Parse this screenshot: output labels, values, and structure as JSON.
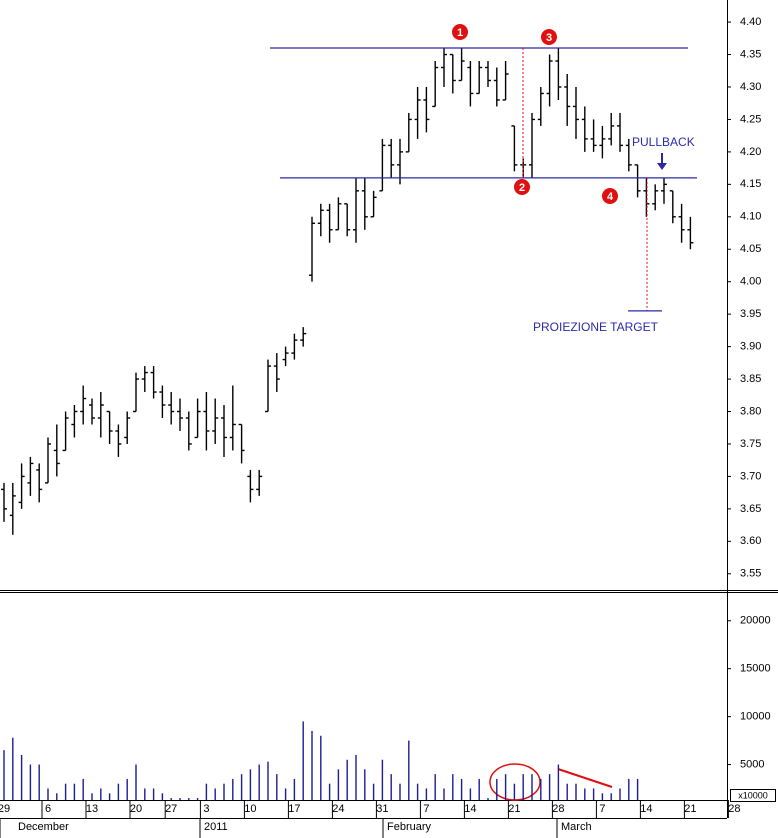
{
  "chart_data": [
    {
      "type": "ohlc",
      "color": "#000000",
      "ylim": [
        3.525,
        4.434
      ],
      "yticks": [
        3.55,
        {
          "value": 3.6,
          "label": "3.60"
        },
        3.65,
        {
          "value": 3.7,
          "label": "3.70"
        },
        3.75,
        {
          "value": 3.8,
          "label": "3.80"
        },
        3.85,
        {
          "value": 3.9,
          "label": "3.90"
        },
        3.95,
        {
          "value": 4,
          "label": "4.00"
        },
        4.05,
        {
          "value": 4.1,
          "label": "4.10"
        },
        4.15,
        {
          "value": 4.2,
          "label": "4.20"
        },
        4.25,
        {
          "value": 4.3,
          "label": "4.30"
        },
        4.35,
        {
          "value": 4.4,
          "label": "4.40"
        }
      ],
      "open": [
        3.68,
        3.64,
        3.66,
        3.69,
        3.71,
        3.69,
        3.74,
        3.74,
        3.78,
        3.8,
        3.81,
        3.79,
        3.8,
        3.77,
        3.76,
        3.8,
        3.85,
        3.86,
        3.83,
        3.81,
        3.8,
        3.79,
        3.76,
        3.8,
        3.77,
        3.79,
        3.76,
        3.78,
        3.7,
        3.68,
        3.8,
        3.87,
        3.88,
        3.89,
        3.91,
        4.01,
        4.09,
        4.11,
        4.08,
        4.12,
        4.08,
        4.14,
        4.1,
        4.14,
        4.21,
        4.18,
        4.2,
        4.25,
        4.28,
        4.27,
        4.33,
        4.35,
        4.31,
        4.33,
        4.29,
        4.33,
        4.31,
        4.28,
        4.24,
        4.18,
        4.18,
        4.25,
        4.29,
        4.34,
        4.3,
        4.27,
        4.25,
        4.22,
        4.21,
        4.22,
        4.24,
        4.21,
        4.18,
        4.14,
        4.12,
        4.14,
        4.14,
        4.1,
        4.08,
        null,
        null,
        null,
        null,
        null
      ],
      "high": [
        3.69,
        3.69,
        3.72,
        3.73,
        3.72,
        3.76,
        3.78,
        3.8,
        3.81,
        3.84,
        3.82,
        3.83,
        3.8,
        3.78,
        3.8,
        3.86,
        3.87,
        3.87,
        3.84,
        3.83,
        3.82,
        3.8,
        3.82,
        3.83,
        3.82,
        3.81,
        3.84,
        3.78,
        3.71,
        3.71,
        3.88,
        3.89,
        3.9,
        3.92,
        3.93,
        4.1,
        4.12,
        4.12,
        4.13,
        4.12,
        4.16,
        4.16,
        4.14,
        4.22,
        4.22,
        4.22,
        4.26,
        4.3,
        4.3,
        4.34,
        4.36,
        4.35,
        4.36,
        4.34,
        4.34,
        4.34,
        4.33,
        4.34,
        4.24,
        4.19,
        4.26,
        4.3,
        4.35,
        4.36,
        4.32,
        4.3,
        4.27,
        4.25,
        4.24,
        4.26,
        4.26,
        4.22,
        4.18,
        4.16,
        4.15,
        4.16,
        4.14,
        4.12,
        4.1,
        null,
        null,
        null,
        null,
        null
      ],
      "low": [
        3.63,
        3.61,
        3.65,
        3.67,
        3.66,
        3.69,
        3.7,
        3.74,
        3.76,
        3.78,
        3.78,
        3.76,
        3.75,
        3.73,
        3.75,
        3.8,
        3.83,
        3.82,
        3.79,
        3.78,
        3.77,
        3.74,
        3.76,
        3.74,
        3.75,
        3.73,
        3.74,
        3.72,
        3.66,
        3.67,
        3.8,
        3.83,
        3.87,
        3.88,
        3.9,
        4.0,
        4.07,
        4.06,
        4.08,
        4.07,
        4.06,
        4.08,
        4.1,
        4.14,
        4.16,
        4.15,
        4.2,
        4.22,
        4.23,
        4.27,
        4.3,
        4.29,
        4.31,
        4.27,
        4.29,
        4.3,
        4.27,
        4.28,
        4.17,
        4.16,
        4.16,
        4.24,
        4.27,
        4.28,
        4.24,
        4.22,
        4.2,
        4.2,
        4.19,
        4.21,
        4.2,
        4.17,
        4.13,
        4.1,
        4.11,
        4.12,
        4.09,
        4.06,
        4.05,
        null,
        null,
        null,
        null,
        null
      ],
      "close": [
        3.65,
        3.67,
        3.7,
        3.72,
        3.68,
        3.75,
        3.72,
        3.79,
        3.8,
        3.82,
        3.79,
        3.81,
        3.77,
        3.75,
        3.79,
        3.85,
        3.86,
        3.83,
        3.81,
        3.8,
        3.79,
        3.75,
        3.8,
        3.77,
        3.79,
        3.76,
        3.78,
        3.74,
        3.68,
        3.7,
        3.87,
        3.85,
        3.89,
        3.91,
        3.92,
        4.09,
        4.11,
        4.08,
        4.12,
        4.08,
        4.14,
        4.1,
        4.13,
        4.21,
        4.18,
        4.2,
        4.25,
        4.28,
        4.25,
        4.33,
        4.35,
        4.31,
        4.34,
        4.29,
        4.33,
        4.31,
        4.28,
        4.32,
        4.18,
        4.18,
        4.25,
        4.29,
        4.34,
        4.3,
        4.27,
        4.25,
        4.22,
        4.21,
        4.22,
        4.24,
        4.21,
        4.18,
        4.14,
        4.12,
        4.14,
        4.15,
        4.1,
        4.08,
        4.06,
        null,
        null,
        null,
        null,
        null
      ],
      "hlines": [
        4.36,
        4.16
      ],
      "hline_color": "#2a2aa8",
      "target": 3.955,
      "markers": [
        "1",
        "2",
        "3",
        "4"
      ],
      "marker_color": "#e01010",
      "annotations": [
        "PULLBACK",
        "PROIEZIONE TARGET"
      ]
    },
    {
      "type": "bar",
      "color": "#1c1c9a",
      "ylim": [
        1300,
        23000
      ],
      "yticks": [
        5000,
        10000,
        15000,
        20000
      ],
      "unit_label": "x10000",
      "categories": [
        "29",
        null,
        null,
        null,
        null,
        "6",
        null,
        null,
        null,
        null,
        "13",
        null,
        null,
        null,
        null,
        "20",
        null,
        null,
        null,
        "27",
        null,
        null,
        null,
        "3",
        null,
        null,
        null,
        null,
        "10",
        null,
        null,
        null,
        null,
        "17",
        null,
        null,
        null,
        null,
        "24",
        null,
        null,
        null,
        null,
        "31",
        null,
        null,
        null,
        null,
        "7",
        null,
        null,
        null,
        null,
        "14",
        null,
        null,
        null,
        null,
        "21",
        null,
        null,
        null,
        null,
        "28",
        null,
        null,
        null,
        null,
        "7",
        null,
        null,
        null,
        null,
        "14",
        null,
        null,
        null,
        null,
        "21",
        null,
        null,
        null,
        null,
        "28"
      ],
      "month_labels": [
        "December",
        "2011",
        "February",
        "March"
      ],
      "values": [
        6500,
        7800,
        6000,
        5000,
        5000,
        2500,
        2000,
        3000,
        3000,
        3500,
        2000,
        2500,
        2000,
        3000,
        3500,
        5000,
        2500,
        2500,
        2000,
        1500,
        1500,
        1500,
        1500,
        3000,
        2500,
        3000,
        3500,
        4000,
        4500,
        5000,
        5300,
        4000,
        2500,
        3500,
        9500,
        8500,
        8000,
        3000,
        4500,
        5500,
        6000,
        4500,
        3000,
        5500,
        4000,
        3000,
        7500,
        3000,
        2500,
        4000,
        2500,
        4000,
        3500,
        2500,
        3500,
        1500,
        3500,
        4000,
        3000,
        4000,
        4000,
        3500,
        4000,
        5000,
        3000,
        3000,
        2500,
        2500,
        2000,
        2000,
        2500,
        3500,
        3500,
        null,
        null,
        null,
        null,
        null,
        null,
        null,
        null,
        null,
        null,
        null
      ]
    }
  ]
}
